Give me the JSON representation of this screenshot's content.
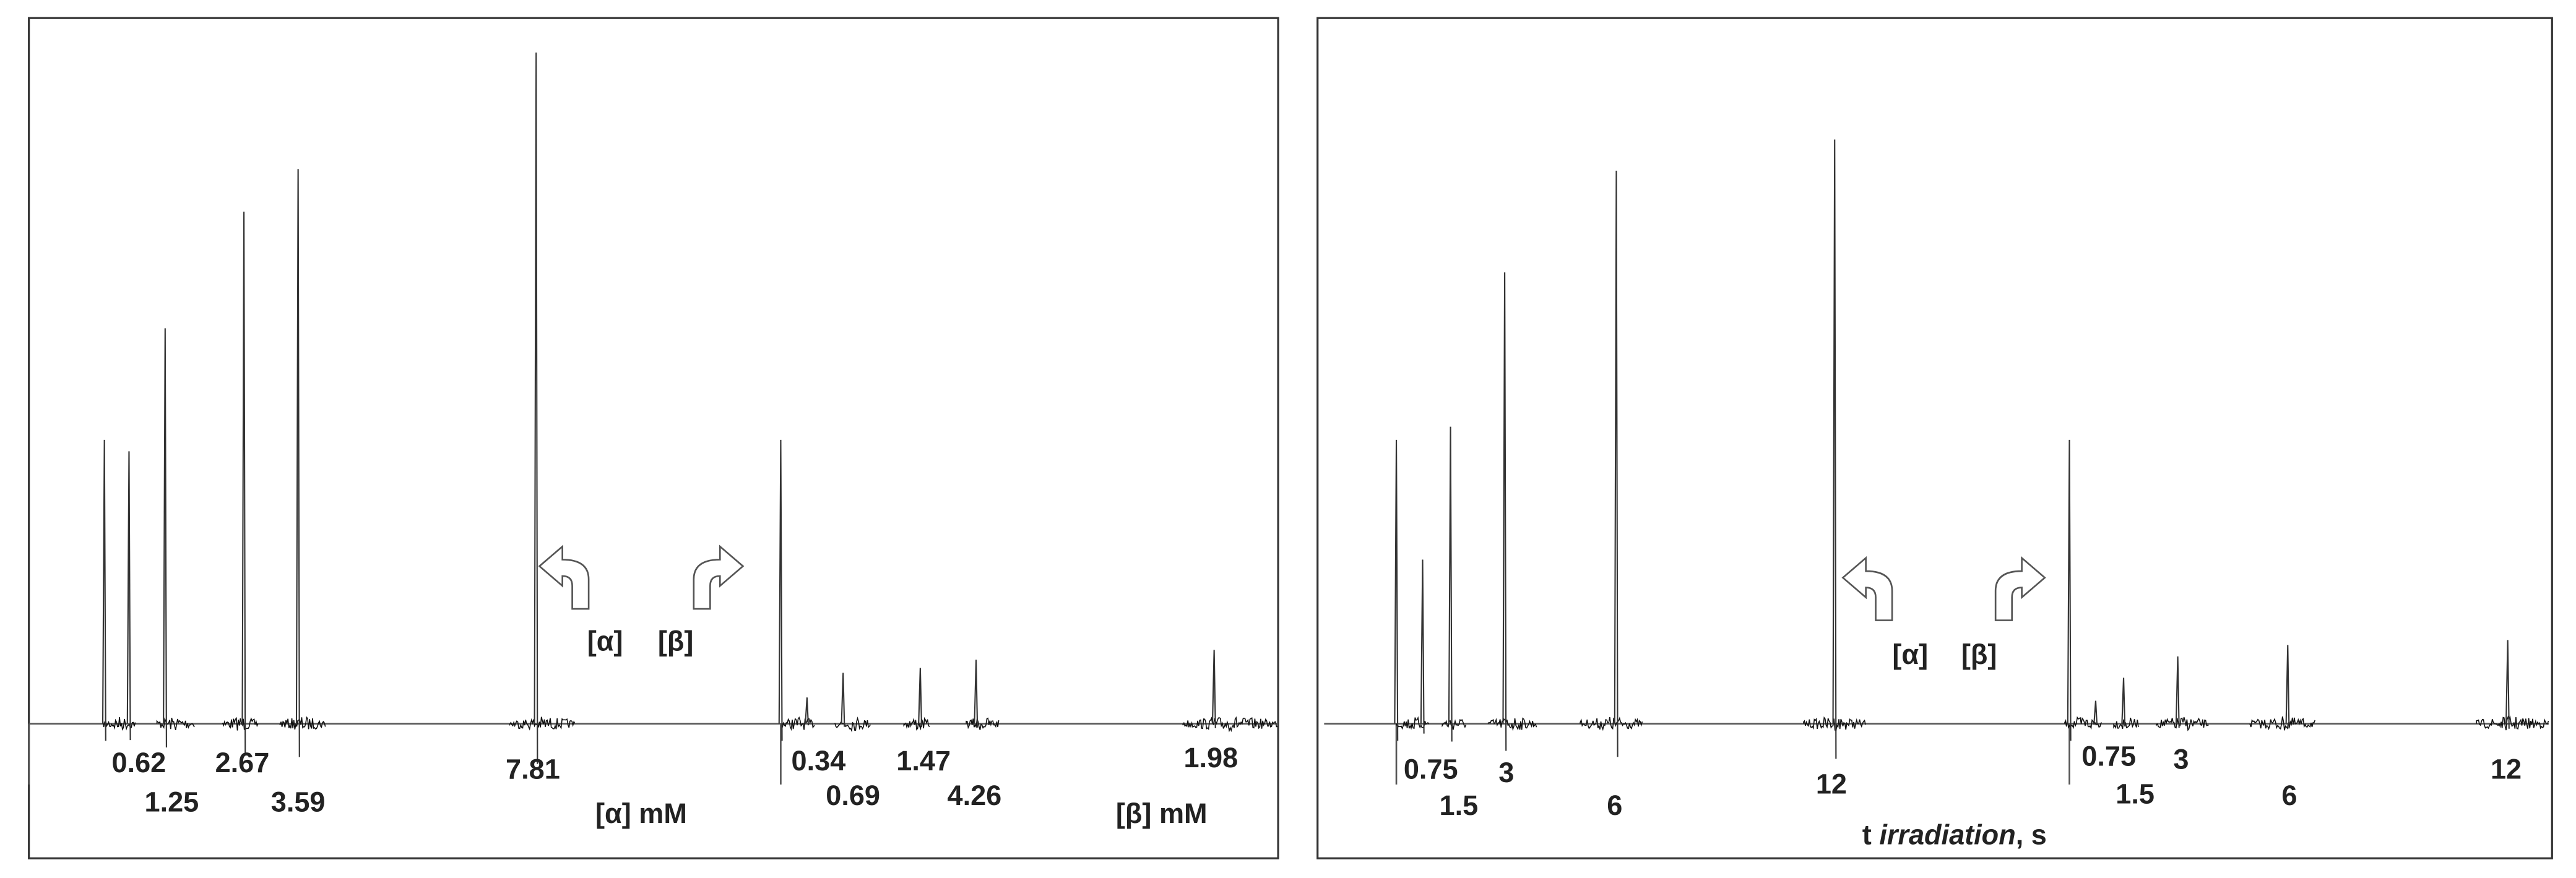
{
  "panels": [
    {
      "peak_labels": [
        "0.62",
        "1.25",
        "2.67",
        "3.59",
        "7.81",
        "0.34",
        "0.69",
        "1.47",
        "4.26",
        "1.98"
      ],
      "center_labels": [
        "[α]",
        "[β]"
      ],
      "axis_labels": [
        "[α] mM",
        "[β] mM"
      ]
    },
    {
      "peak_labels": [
        "0.75",
        "1.5",
        "3",
        "6",
        "12",
        "0.75",
        "1.5",
        "3",
        "6",
        "12"
      ],
      "center_labels": [
        "[α]",
        "[β]"
      ],
      "axis_label": {
        "prefix": "t ",
        "italic": "irradiation",
        "suffix": ", s"
      }
    }
  ]
}
